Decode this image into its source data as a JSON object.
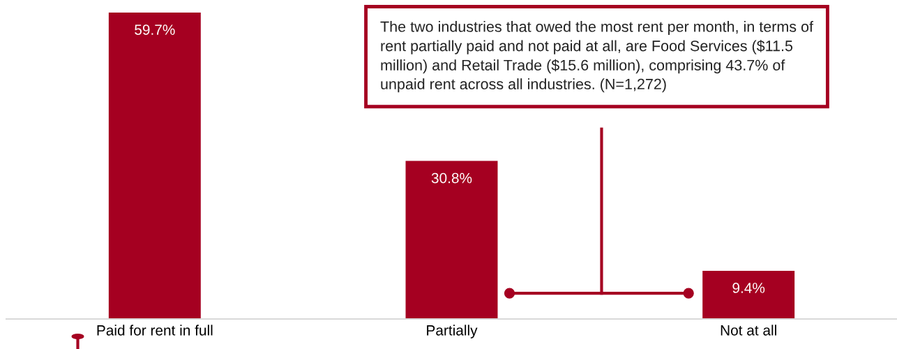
{
  "chart_data": {
    "type": "bar",
    "categories": [
      "Paid for rent in full",
      "Partially",
      "Not at all"
    ],
    "values": [
      59.7,
      30.8,
      9.4
    ],
    "value_labels": [
      "59.7%",
      "30.8%",
      "9.4%"
    ],
    "color": "#a50021",
    "grid": false,
    "annotations": [
      "The two industries that owed the most rent per month, in terms of rent partially paid and not paid at all, are Food Services ($11.5 million) and Retail Trade ($15.6 million), comprising 43.7% of unpaid rent across all industries. (N=1,272)"
    ]
  }
}
